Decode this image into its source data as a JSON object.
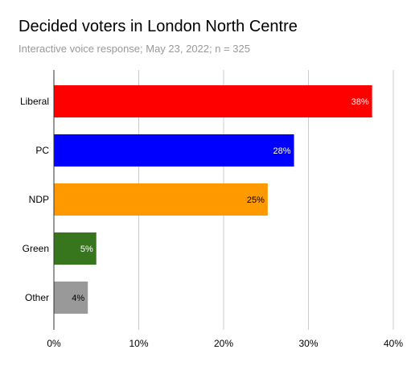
{
  "chart_data": {
    "type": "bar",
    "orientation": "horizontal",
    "title": "Decided voters in London North Centre",
    "subtitle": "Interactive voice response; May 23, 2022; n = 325",
    "categories": [
      "Liberal",
      "PC",
      "NDP",
      "Green",
      "Other"
    ],
    "values": [
      37.5,
      28.3,
      25.2,
      5.0,
      4.0
    ],
    "data_labels": [
      "38%",
      "28%",
      "25%",
      "5%",
      "4%"
    ],
    "colors": [
      "#ff0000",
      "#0000ff",
      "#ff9900",
      "#38761d",
      "#999999"
    ],
    "data_label_colors": [
      "#ffffff",
      "#ffffff",
      "#000000",
      "#ffffff",
      "#000000"
    ],
    "xlim": [
      0,
      40
    ],
    "xticks": [
      0,
      10,
      20,
      30,
      40
    ],
    "xtick_labels": [
      "0%",
      "10%",
      "20%",
      "30%",
      "40%"
    ],
    "xlabel": "",
    "ylabel": "",
    "grid": true,
    "legend": "none"
  }
}
